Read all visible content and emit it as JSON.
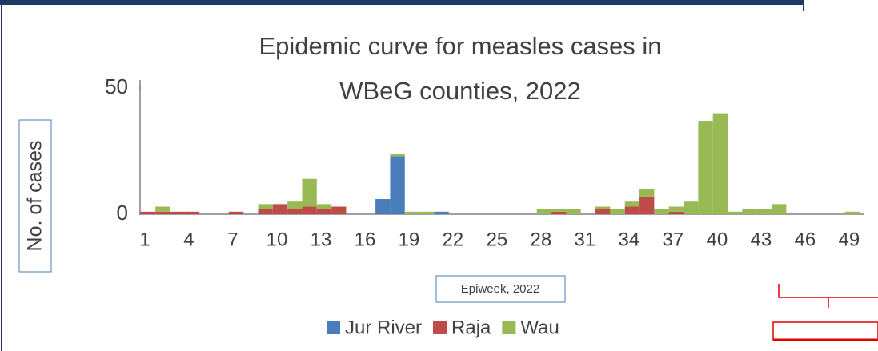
{
  "chart_data": {
    "type": "stacked-bar",
    "title": "Epidemic curve for measles cases in WBeG counties, 2022",
    "y_label": "No. of cases",
    "x_label": "Epiweek, 2022",
    "categories": [
      "1",
      null,
      null,
      "4",
      null,
      null,
      "7",
      null,
      null,
      "10",
      null,
      null,
      "13",
      null,
      null,
      "16",
      null,
      null,
      "19",
      null,
      null,
      "22",
      null,
      null,
      "25",
      null,
      null,
      "28",
      null,
      null,
      "31",
      null,
      null,
      "34",
      null,
      null,
      "37",
      null,
      null,
      "40",
      null,
      null,
      "43",
      null,
      null,
      "46",
      null,
      null,
      "49",
      null
    ],
    "series": [
      {
        "name": "Jur River",
        "color": "#4a7ebb",
        "values": [
          0,
          0,
          0,
          0,
          0,
          0,
          0,
          0,
          0,
          0,
          0,
          0,
          0,
          0,
          0,
          0,
          6,
          23,
          0,
          0,
          1,
          0,
          0,
          0,
          0,
          0,
          0,
          0,
          0,
          0,
          0,
          0,
          0,
          0,
          0,
          0,
          0,
          0,
          0,
          0,
          0,
          0,
          0,
          0,
          0,
          0,
          0,
          0,
          0,
          0
        ]
      },
      {
        "name": "Raja",
        "color": "#be4b48",
        "values": [
          1,
          1,
          1,
          1,
          0,
          0,
          1,
          0,
          2,
          4,
          2,
          3,
          2,
          3,
          0,
          0,
          0,
          0,
          0,
          0,
          0,
          0,
          0,
          0,
          0,
          0,
          0,
          0,
          1,
          0,
          0,
          2,
          0,
          3,
          7,
          0,
          1,
          0,
          0,
          0,
          0,
          0,
          0,
          0,
          0,
          0,
          0,
          0,
          0,
          0
        ]
      },
      {
        "name": "Wau",
        "color": "#98b954",
        "values": [
          0,
          2,
          0,
          0,
          0,
          0,
          0,
          0,
          2,
          0,
          3,
          11,
          2,
          0,
          0,
          0,
          0,
          1,
          1,
          1,
          0,
          0,
          0,
          0,
          0,
          0,
          0,
          2,
          1,
          2,
          0,
          1,
          2,
          2,
          3,
          2,
          2,
          5,
          37,
          40,
          1,
          2,
          2,
          4,
          0,
          0,
          0,
          0,
          1,
          0
        ]
      }
    ],
    "ylim": [
      0,
      50
    ],
    "yticks": [
      0,
      50
    ],
    "legend": "bottom"
  }
}
